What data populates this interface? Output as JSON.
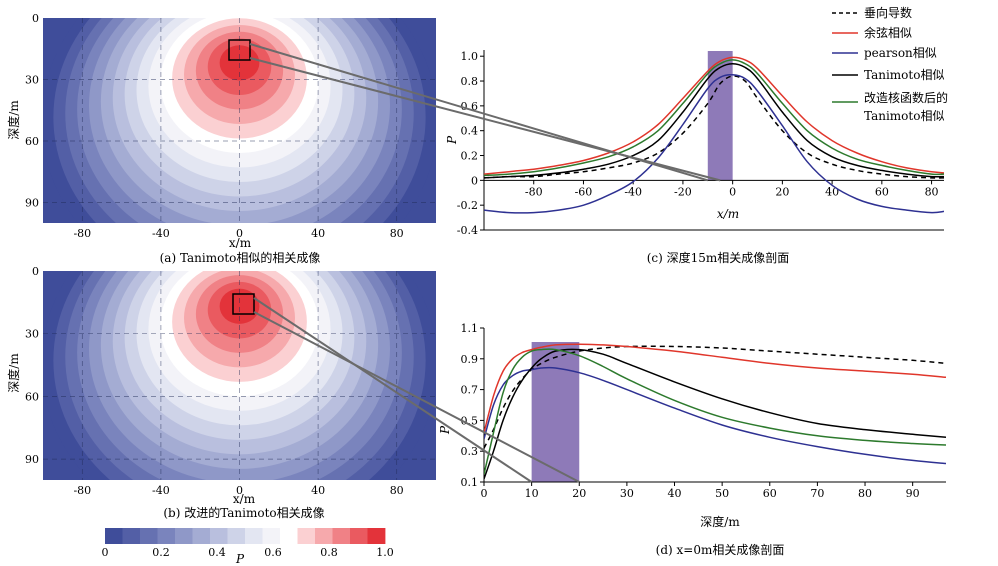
{
  "chart_data": [
    {
      "id": "a",
      "type": "heatmap",
      "caption": "(a) Tanimoto相似的相关成像",
      "xlabel": "x/m",
      "ylabel": "深度/m",
      "xlim": [
        -100,
        100
      ],
      "ylim": [
        0,
        100
      ],
      "xticks": [
        -80,
        -40,
        0,
        40,
        80
      ],
      "yticks": [
        0,
        30,
        60,
        90
      ],
      "source": {
        "x": 0,
        "depth": 20
      },
      "peak_value": 0.95,
      "box": {
        "x": [
          -5,
          5
        ],
        "depth": [
          10,
          20
        ]
      }
    },
    {
      "id": "b",
      "type": "heatmap",
      "caption": "(b) 改进的Tanimoto相关成像",
      "xlabel": "x/m",
      "ylabel": "深度/m",
      "xlim": [
        -100,
        100
      ],
      "ylim": [
        0,
        100
      ],
      "xticks": [
        -80,
        -40,
        0,
        40,
        80
      ],
      "yticks": [
        0,
        30,
        60,
        90
      ],
      "source": {
        "x": 0,
        "depth": 15
      },
      "peak_value": 1.0,
      "box": {
        "x": [
          -5,
          5
        ],
        "depth": [
          10,
          20
        ]
      }
    },
    {
      "id": "c",
      "type": "line",
      "caption": "(c) 深度15m相关成像剖面",
      "xlabel": "x/m",
      "ylabel": "P",
      "xlim": [
        -100,
        85
      ],
      "ylim": [
        -0.4,
        1.05
      ],
      "xticks": [
        -80,
        -60,
        -40,
        -20,
        0,
        20,
        40,
        60,
        80
      ],
      "yticks": [
        -0.4,
        -0.2,
        0,
        0.2,
        0.4,
        0.6,
        0.8,
        1.0
      ],
      "ytick_labels": [
        "-0.4",
        "-0.2",
        "0",
        "0.2",
        "0.4",
        "0.6",
        "0.8",
        "1.0"
      ],
      "highlight": [
        -10,
        0
      ],
      "x": [
        -100,
        -90,
        -80,
        -70,
        -60,
        -50,
        -40,
        -30,
        -20,
        -10,
        -5,
        0,
        5,
        10,
        20,
        30,
        40,
        50,
        60,
        70,
        80,
        85
      ],
      "series": [
        {
          "name": "垂向导数",
          "color": "#000000",
          "dashed": true,
          "values": [
            0.02,
            0.03,
            0.03,
            0.05,
            0.07,
            0.1,
            0.14,
            0.22,
            0.38,
            0.62,
            0.78,
            0.84,
            0.8,
            0.66,
            0.4,
            0.22,
            0.13,
            0.08,
            0.05,
            0.03,
            0.02,
            0.02
          ]
        },
        {
          "name": "余弦相似",
          "color": "#e0362b",
          "values": [
            0.05,
            0.07,
            0.09,
            0.12,
            0.16,
            0.22,
            0.31,
            0.45,
            0.66,
            0.88,
            0.96,
            0.99,
            0.97,
            0.9,
            0.68,
            0.47,
            0.32,
            0.22,
            0.15,
            0.1,
            0.07,
            0.06
          ]
        },
        {
          "name": "pearson相似",
          "color": "#2e3192",
          "values": [
            -0.24,
            -0.26,
            -0.26,
            -0.24,
            -0.2,
            -0.12,
            -0.01,
            0.18,
            0.45,
            0.74,
            0.83,
            0.85,
            0.82,
            0.72,
            0.44,
            0.15,
            -0.04,
            -0.15,
            -0.21,
            -0.24,
            -0.26,
            -0.25
          ]
        },
        {
          "name": "Tanimoto相似",
          "color": "#000000",
          "values": [
            0.02,
            0.03,
            0.04,
            0.06,
            0.09,
            0.13,
            0.2,
            0.32,
            0.55,
            0.82,
            0.91,
            0.94,
            0.91,
            0.82,
            0.55,
            0.32,
            0.19,
            0.12,
            0.08,
            0.05,
            0.03,
            0.03
          ]
        },
        {
          "name": "改造核函数后的Tanimoto相似",
          "color": "#2d7a2d",
          "values": [
            0.04,
            0.05,
            0.07,
            0.1,
            0.14,
            0.19,
            0.27,
            0.4,
            0.62,
            0.86,
            0.94,
            0.97,
            0.94,
            0.86,
            0.62,
            0.4,
            0.26,
            0.17,
            0.12,
            0.08,
            0.05,
            0.05
          ]
        }
      ],
      "legend": "top-right"
    },
    {
      "id": "d",
      "type": "line",
      "caption": "(d) x=0m相关成像剖面",
      "xlabel": "深度/m",
      "ylabel": "P",
      "xlim": [
        0,
        97
      ],
      "ylim": [
        0.1,
        1.1
      ],
      "xticks": [
        0,
        10,
        20,
        30,
        40,
        50,
        60,
        70,
        80,
        90
      ],
      "yticks": [
        0.1,
        0.3,
        0.5,
        0.7,
        0.9,
        1.1
      ],
      "ytick_labels": [
        "0.1",
        "0.3",
        "0.5",
        "0.7",
        "0.9",
        "1.1"
      ],
      "highlight": [
        10,
        20
      ],
      "x": [
        0,
        2,
        4,
        6,
        8,
        10,
        12,
        15,
        20,
        25,
        30,
        40,
        50,
        60,
        70,
        80,
        90,
        97
      ],
      "series": [
        {
          "name": "垂向导数",
          "color": "#000000",
          "dashed": true,
          "values": [
            0.32,
            0.44,
            0.58,
            0.69,
            0.77,
            0.83,
            0.87,
            0.91,
            0.95,
            0.97,
            0.98,
            0.98,
            0.97,
            0.95,
            0.93,
            0.91,
            0.89,
            0.87
          ]
        },
        {
          "name": "余弦相似",
          "color": "#e0362b",
          "values": [
            0.42,
            0.66,
            0.82,
            0.9,
            0.94,
            0.96,
            0.975,
            0.99,
            0.995,
            0.99,
            0.98,
            0.95,
            0.91,
            0.87,
            0.84,
            0.82,
            0.8,
            0.78
          ]
        },
        {
          "name": "pearson相似",
          "color": "#2e3192",
          "values": [
            0.38,
            0.6,
            0.73,
            0.79,
            0.82,
            0.83,
            0.84,
            0.84,
            0.81,
            0.76,
            0.7,
            0.58,
            0.47,
            0.39,
            0.33,
            0.28,
            0.24,
            0.22
          ]
        },
        {
          "name": "Tanimoto相似",
          "color": "#000000",
          "values": [
            0.12,
            0.3,
            0.5,
            0.65,
            0.76,
            0.84,
            0.9,
            0.95,
            0.96,
            0.93,
            0.87,
            0.75,
            0.64,
            0.55,
            0.48,
            0.44,
            0.41,
            0.39
          ]
        },
        {
          "name": "改造核函数后的Tanimoto相似",
          "color": "#2d7a2d",
          "values": [
            0.15,
            0.42,
            0.68,
            0.83,
            0.91,
            0.95,
            0.96,
            0.96,
            0.92,
            0.85,
            0.77,
            0.63,
            0.52,
            0.45,
            0.4,
            0.37,
            0.35,
            0.34
          ]
        }
      ]
    }
  ],
  "colorbar": {
    "label": "P",
    "ticks": [
      "0",
      "0.2",
      "0.4",
      "0.6",
      "0.8",
      "1.0"
    ],
    "colors": [
      "#3f4d9a",
      "#535fa6",
      "#6671b1",
      "#7a84bd",
      "#8f98c8",
      "#a4acd3",
      "#b9bfde",
      "#ced3e8",
      "#e3e6f2",
      "#f3f3f8",
      "#ffffff",
      "#fbd0d2",
      "#f6a9ac",
      "#f08186",
      "#ea5a60",
      "#e3333a"
    ]
  },
  "legend_labels": [
    "垂向导数",
    "余弦相似",
    "pearson相似",
    "Tanimoto相似",
    "改造核函数后的",
    "Tanimoto相似"
  ],
  "colors": {
    "highlight": "#8e7ab8",
    "connector": "#6b6b6b"
  }
}
